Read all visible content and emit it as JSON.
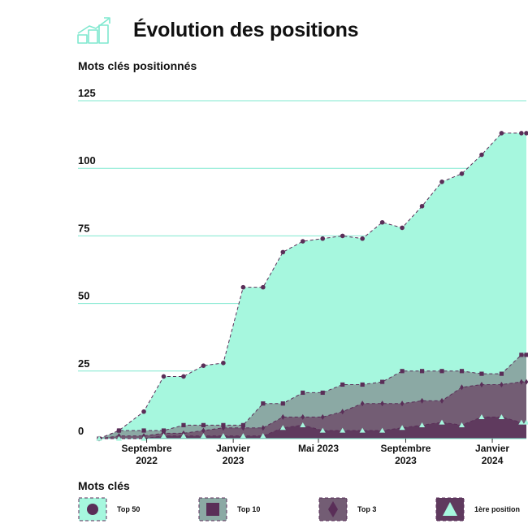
{
  "header": {
    "title": "Évolution des positions",
    "icon": "growth-chart-icon"
  },
  "colors": {
    "top50": "#a6f7de",
    "top10": "#8ba9a4",
    "top3": "#735d74",
    "first": "#5f3a5e",
    "line": "#5a2e58",
    "grid": "#7fe8cf",
    "firstMarker": "#a6f7de"
  },
  "chart_data": {
    "type": "area",
    "title": "",
    "ylabel": "Mots clés positionnés",
    "ylim": [
      0,
      125
    ],
    "yticks": [
      0,
      25,
      50,
      75,
      100,
      125
    ],
    "grid": true,
    "legend_title": "Mots clés",
    "legend_position": "bottom",
    "x_range": [
      "2022-06-26",
      "2024-02-18"
    ],
    "xticks": [
      {
        "date": "2022-09-01",
        "label": [
          "Septembre",
          "2022"
        ]
      },
      {
        "date": "2023-01-01",
        "label": [
          "Janvier",
          "2023"
        ]
      },
      {
        "date": "2023-05-01",
        "label": [
          "Mai 2023"
        ]
      },
      {
        "date": "2023-09-01",
        "label": [
          "Septembre",
          "2023"
        ]
      },
      {
        "date": "2024-01-01",
        "label": [
          "Janvier",
          "2024"
        ]
      }
    ],
    "x": [
      "2022-06-26",
      "2022-07-24",
      "2022-08-28",
      "2022-09-25",
      "2022-10-23",
      "2022-11-20",
      "2022-12-18",
      "2023-01-15",
      "2023-02-12",
      "2023-03-12",
      "2023-04-09",
      "2023-05-07",
      "2023-06-04",
      "2023-07-02",
      "2023-07-30",
      "2023-08-27",
      "2023-09-24",
      "2023-10-22",
      "2023-11-19",
      "2023-12-17",
      "2024-01-14",
      "2024-02-11",
      "2024-02-18"
    ],
    "series": [
      {
        "name": "Top 50",
        "marker": "circle",
        "values": [
          0,
          3,
          10,
          23,
          23,
          27,
          28,
          56,
          56,
          69,
          73,
          74,
          75,
          74,
          80,
          78,
          86,
          95,
          98,
          105,
          113,
          113,
          113
        ]
      },
      {
        "name": "Top 10",
        "marker": "square",
        "values": [
          0,
          3,
          3,
          3,
          5,
          5,
          5,
          5,
          13,
          13,
          17,
          17,
          20,
          20,
          21,
          25,
          25,
          25,
          25,
          24,
          24,
          31,
          31
        ]
      },
      {
        "name": "Top 3",
        "marker": "diamond",
        "values": [
          0,
          1,
          1,
          2,
          2,
          3,
          4,
          4,
          4,
          8,
          8,
          8,
          10,
          13,
          13,
          13,
          14,
          14,
          19,
          20,
          20,
          21,
          21
        ]
      },
      {
        "name": "1ère position",
        "marker": "triangle",
        "values": [
          0,
          0,
          0,
          1,
          1,
          1,
          1,
          1,
          1,
          4,
          5,
          3,
          3,
          3,
          3,
          4,
          5,
          6,
          5,
          8,
          8,
          6,
          6
        ]
      }
    ]
  }
}
